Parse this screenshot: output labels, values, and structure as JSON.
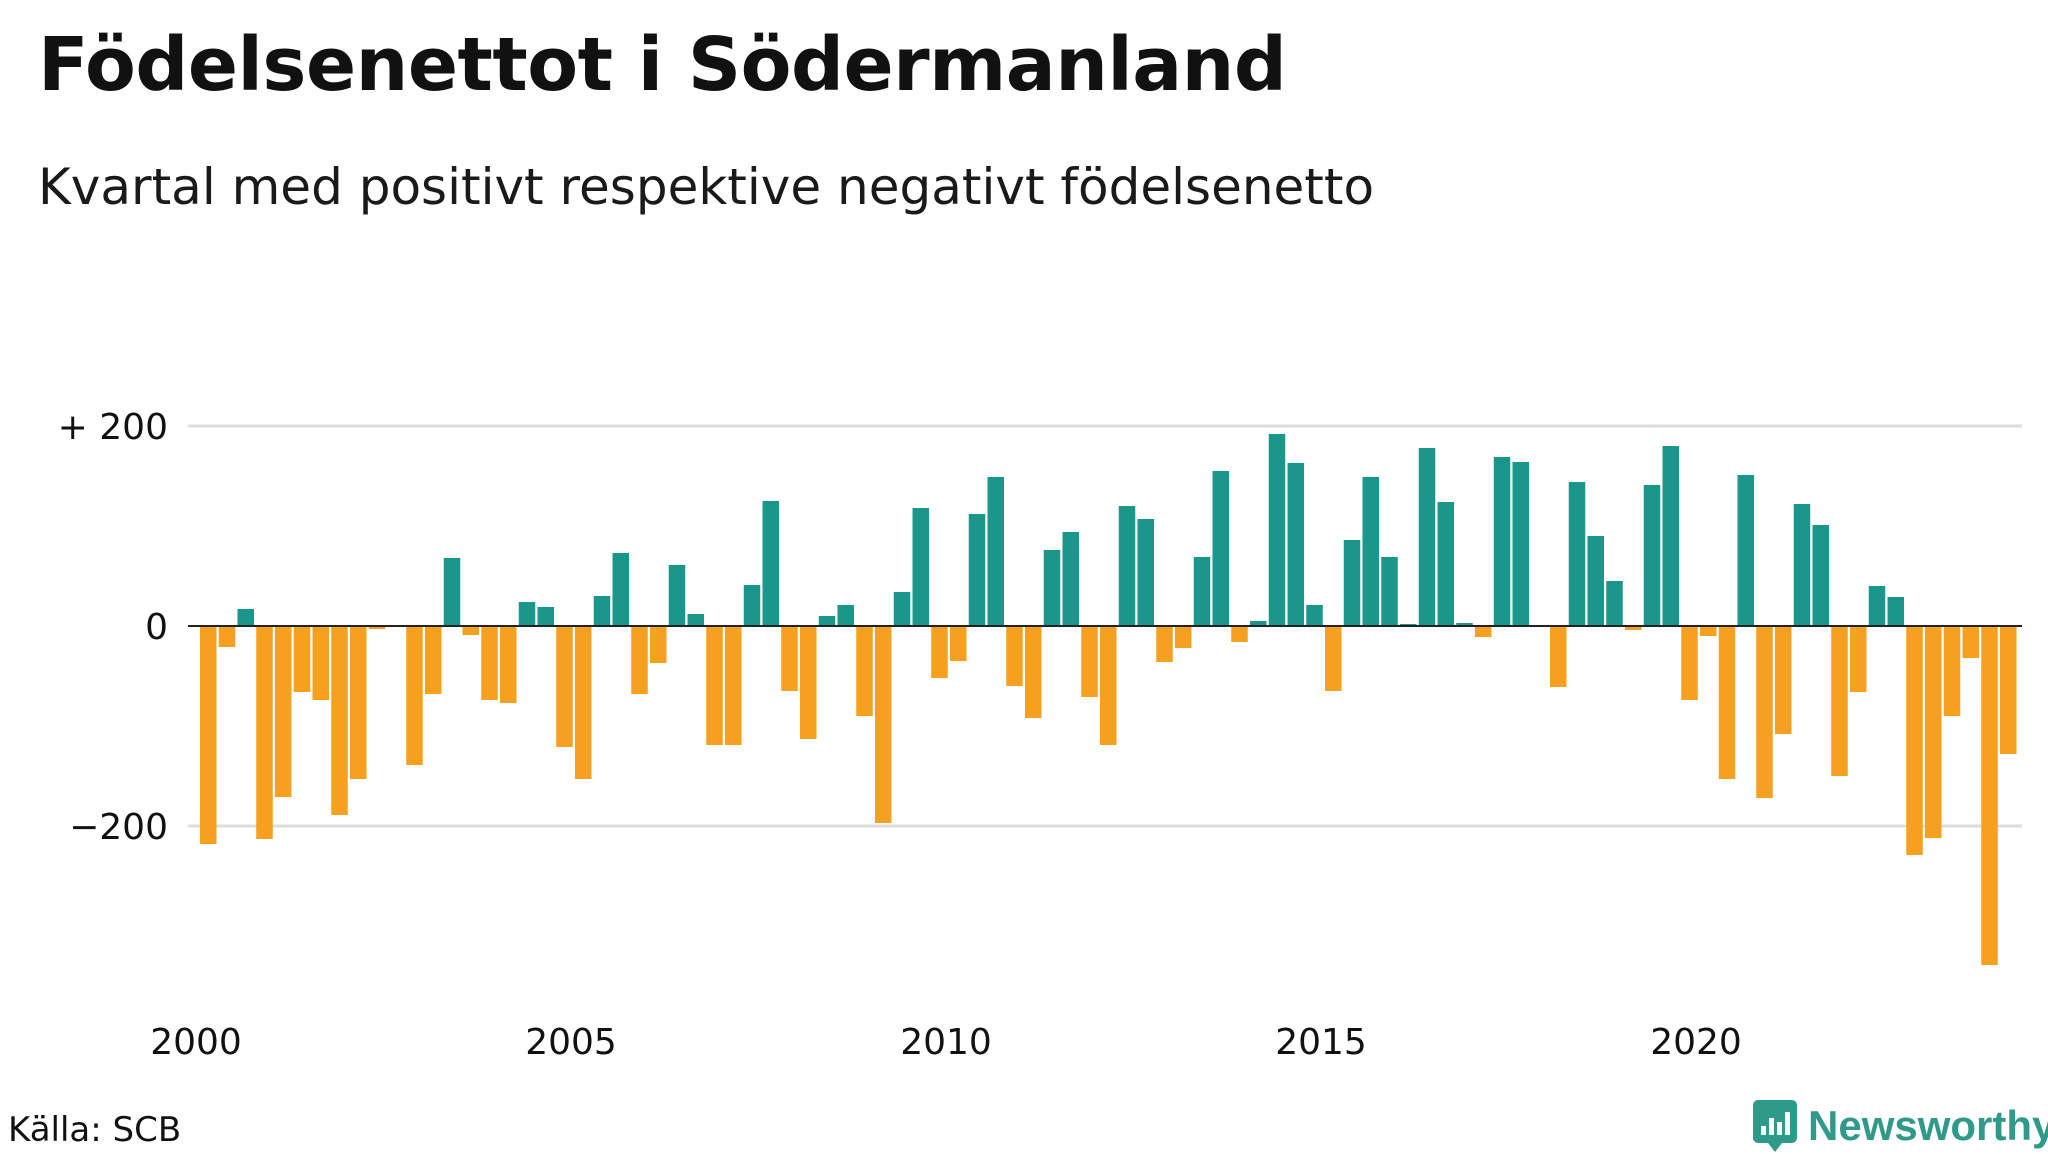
{
  "title": "Födelsenettot i Södermanland",
  "subtitle": "Kvartal med positivt respektive negativt födelsenetto",
  "source": "Källa: SCB",
  "brand": {
    "name": "Newsworthy",
    "icon": "newsworthy-logo-icon",
    "color": "#2f9a8a"
  },
  "colors": {
    "positive": "#1a968a",
    "negative": "#f5a01f",
    "grid": "#dddddd",
    "zero_line": "#222222"
  },
  "chart_data": {
    "type": "bar",
    "title": "Födelsenettot i Södermanland",
    "subtitle": "Kvartal med positivt respektive negativt födelsenetto",
    "xlabel": "",
    "ylabel": "",
    "ylim": [
      -345,
      200
    ],
    "grid": true,
    "y_ticks": [
      200,
      0,
      -200
    ],
    "y_tick_labels": [
      "+ 200",
      "0",
      "−200"
    ],
    "x_ticks": [
      2000,
      2005,
      2010,
      2015,
      2020
    ],
    "x_tick_labels": [
      "2000",
      "2005",
      "2010",
      "2015",
      "2020"
    ],
    "start_year": 2000,
    "periods_per_year": 4,
    "values": [
      -218,
      -21,
      17,
      -213,
      -171,
      -66,
      -74,
      -189,
      -153,
      -3,
      0,
      -139,
      -68,
      68,
      -9,
      -74,
      -77,
      24,
      19,
      -121,
      -153,
      30,
      73,
      -68,
      -37,
      61,
      12,
      -119,
      -119,
      41,
      125,
      -65,
      -113,
      10,
      21,
      -90,
      -197,
      34,
      118,
      -52,
      -35,
      112,
      149,
      -60,
      -92,
      76,
      94,
      -71,
      -119,
      120,
      107,
      -36,
      -22,
      69,
      155,
      -16,
      5,
      192,
      163,
      21,
      -65,
      86,
      149,
      69,
      2,
      178,
      124,
      3,
      -11,
      169,
      164,
      0,
      -61,
      144,
      90,
      45,
      -4,
      141,
      180,
      -74,
      -10,
      -153,
      151,
      -172,
      -108,
      122,
      101,
      -150,
      -66,
      40,
      29,
      -229,
      -212,
      -90,
      -32,
      -339,
      -128
    ]
  }
}
